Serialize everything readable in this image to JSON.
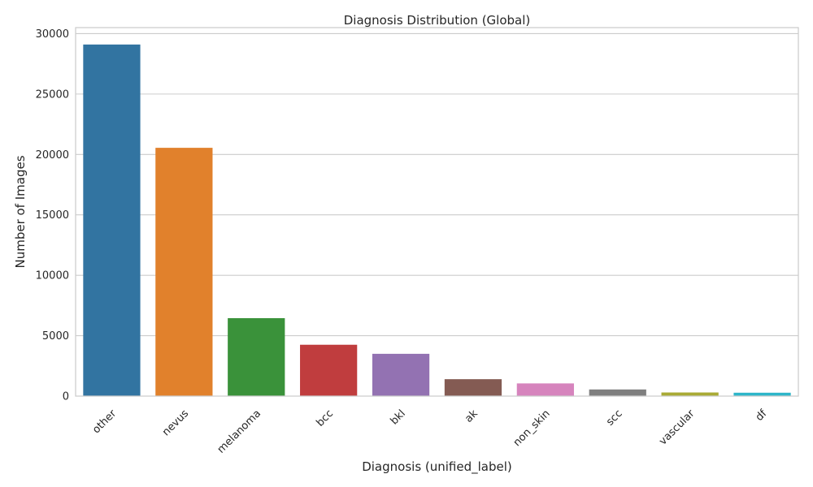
{
  "chart_data": {
    "type": "bar",
    "title": "Diagnosis Distribution (Global)",
    "xlabel": "Diagnosis (unified_label)",
    "ylabel": "Number of Images",
    "categories": [
      "other",
      "nevus",
      "melanoma",
      "bcc",
      "bkl",
      "ak",
      "non_skin",
      "scc",
      "vascular",
      "df"
    ],
    "values": [
      29100,
      20550,
      6450,
      4250,
      3500,
      1400,
      1050,
      550,
      300,
      280
    ],
    "colors": [
      "#3274a1",
      "#e1812c",
      "#3a923a",
      "#c03d3e",
      "#9372b2",
      "#845b53",
      "#d684bd",
      "#7f7f7f",
      "#a9aa35",
      "#2eb6c9"
    ],
    "ylim": [
      0,
      30000
    ],
    "yticks": [
      0,
      5000,
      10000,
      15000,
      20000,
      25000,
      30000
    ],
    "grid": "horizontal",
    "legend": "none"
  }
}
